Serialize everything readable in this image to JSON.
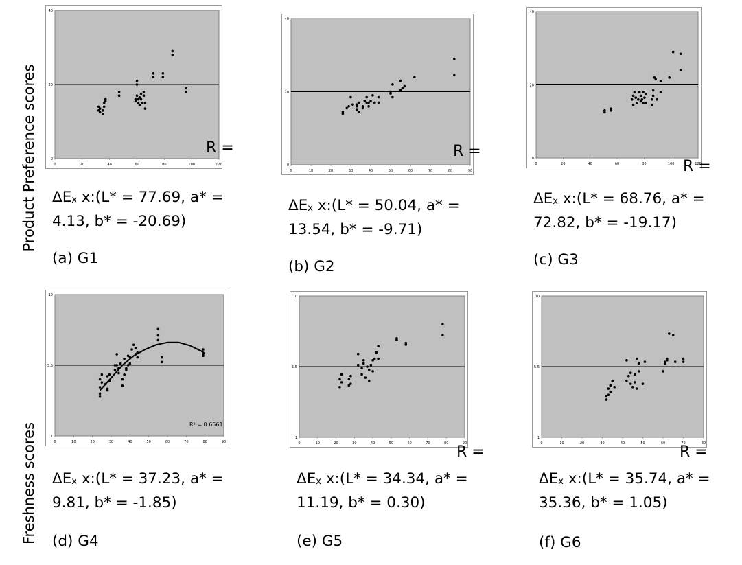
{
  "side_labels": {
    "top": "Product Preference scores",
    "bottom": "Freshness scores"
  },
  "colors": {
    "plot_bg": "#c0c0c0",
    "frame": "#808080",
    "ink": "#000000"
  },
  "chart_data": [
    {
      "type": "scatter",
      "id": "G1",
      "xlim": [
        0,
        120
      ],
      "ylim": [
        0,
        40
      ],
      "xticks": [
        "0",
        "20",
        "40",
        "60",
        "80",
        "100",
        "120"
      ],
      "yticks": [
        "0",
        "20",
        "40"
      ],
      "hline": 20,
      "grid": false,
      "legend": "none",
      "caption_formula": [
        "ΔE",
        "x",
        "  x:(L* = 77.69, a* =",
        "4.13, b* = -20.69)"
      ],
      "caption_label": "(a) G1",
      "r_label": "R =",
      "points": [
        [
          32,
          14
        ],
        [
          32,
          13
        ],
        [
          33,
          13.5
        ],
        [
          33,
          12.5
        ],
        [
          35,
          12
        ],
        [
          35,
          13
        ],
        [
          36,
          14
        ],
        [
          36,
          15
        ],
        [
          37,
          15.5
        ],
        [
          37,
          16
        ],
        [
          47,
          17
        ],
        [
          47,
          18
        ],
        [
          59,
          16
        ],
        [
          59,
          15.5
        ],
        [
          60,
          17
        ],
        [
          60,
          20
        ],
        [
          60,
          21
        ],
        [
          61,
          16
        ],
        [
          61,
          15
        ],
        [
          62,
          14.5
        ],
        [
          62,
          16.5
        ],
        [
          63,
          17.5
        ],
        [
          63,
          16
        ],
        [
          64,
          15
        ],
        [
          65,
          17
        ],
        [
          65,
          18
        ],
        [
          66,
          13.5
        ],
        [
          66,
          15
        ],
        [
          72,
          22
        ],
        [
          72,
          23
        ],
        [
          79,
          22
        ],
        [
          79,
          23
        ],
        [
          86,
          28
        ],
        [
          86,
          29
        ],
        [
          96,
          18
        ],
        [
          96,
          19
        ]
      ]
    },
    {
      "type": "scatter",
      "id": "G2",
      "xlim": [
        0,
        90
      ],
      "ylim": [
        0,
        40
      ],
      "xticks": [
        "0",
        "10",
        "20",
        "30",
        "40",
        "50",
        "60",
        "70",
        "80",
        "90"
      ],
      "yticks": [
        "0",
        "20",
        "40"
      ],
      "hline": 20,
      "grid": false,
      "legend": "none",
      "caption_formula": [
        "ΔE",
        "x",
        " x:(L* = 50.04, a* =",
        "13.54, b* = -9.71)"
      ],
      "caption_label": "(b) G2",
      "r_label": "R =",
      "points": [
        [
          26,
          14
        ],
        [
          26,
          14.5
        ],
        [
          28,
          15.5
        ],
        [
          29,
          16
        ],
        [
          30,
          18.5
        ],
        [
          31,
          16.5
        ],
        [
          33,
          15
        ],
        [
          33,
          16
        ],
        [
          33,
          16.5
        ],
        [
          34,
          17
        ],
        [
          34,
          14.5
        ],
        [
          36,
          16
        ],
        [
          36,
          15.5
        ],
        [
          37,
          17.5
        ],
        [
          38,
          17
        ],
        [
          38,
          18.5
        ],
        [
          39,
          16
        ],
        [
          39,
          17
        ],
        [
          40,
          17.5
        ],
        [
          41,
          19
        ],
        [
          42,
          17
        ],
        [
          44,
          18.5
        ],
        [
          44,
          17
        ],
        [
          50,
          19.5
        ],
        [
          50,
          20
        ],
        [
          51,
          18.5
        ],
        [
          51,
          22
        ],
        [
          55,
          20.5
        ],
        [
          55,
          23
        ],
        [
          56,
          21
        ],
        [
          57,
          21.5
        ],
        [
          62,
          24
        ],
        [
          82,
          29
        ],
        [
          82,
          24.5
        ]
      ]
    },
    {
      "type": "scatter",
      "id": "G3",
      "xlim": [
        0,
        130
      ],
      "ylim": [
        0,
        40
      ],
      "xticks": [
        "0",
        "20",
        "40",
        "60",
        "80",
        "100",
        "120"
      ],
      "yticks": [
        "0",
        "20",
        "40"
      ],
      "hline": 20,
      "grid": false,
      "legend": "none",
      "caption_formula": [
        "ΔE",
        "x",
        " x:(L* = 68.76, a* =",
        "72.82, b* = -19.17)"
      ],
      "caption_label": "(c) G3",
      "r_label": "R =",
      "points": [
        [
          55,
          13
        ],
        [
          55,
          12.5
        ],
        [
          60,
          13.5
        ],
        [
          60,
          13
        ],
        [
          77,
          16
        ],
        [
          78,
          17
        ],
        [
          78,
          14.5
        ],
        [
          79,
          18
        ],
        [
          80,
          16.5
        ],
        [
          81,
          15
        ],
        [
          82,
          16
        ],
        [
          83,
          18
        ],
        [
          84,
          17
        ],
        [
          84,
          15.5
        ],
        [
          85,
          16
        ],
        [
          86,
          18
        ],
        [
          86,
          15
        ],
        [
          87,
          16.5
        ],
        [
          88,
          17.5
        ],
        [
          88,
          15
        ],
        [
          93,
          14.5
        ],
        [
          93,
          16
        ],
        [
          94,
          17
        ],
        [
          94,
          18.5
        ],
        [
          95,
          22
        ],
        [
          96,
          21.5
        ],
        [
          97,
          16
        ],
        [
          100,
          18
        ],
        [
          100,
          21
        ],
        [
          107,
          22
        ],
        [
          110,
          29
        ],
        [
          116,
          28.5
        ],
        [
          116,
          24
        ]
      ]
    },
    {
      "type": "scatter",
      "id": "G4",
      "xlim": [
        0,
        90
      ],
      "ylim": [
        1,
        10
      ],
      "xticks": [
        "0",
        "10",
        "20",
        "30",
        "40",
        "50",
        "60",
        "70",
        "80",
        "90"
      ],
      "yticks": [
        "1",
        "5.5",
        "10"
      ],
      "hline": 5.5,
      "grid": false,
      "legend": "none",
      "trendline": {
        "type": "poly2",
        "x_range": [
          24,
          80
        ],
        "points": [
          [
            24,
            3.9
          ],
          [
            30,
            4.7
          ],
          [
            36,
            5.5
          ],
          [
            42,
            6.1
          ],
          [
            48,
            6.5
          ],
          [
            54,
            6.8
          ],
          [
            60,
            6.95
          ],
          [
            66,
            6.95
          ],
          [
            72,
            6.75
          ],
          [
            78,
            6.4
          ],
          [
            80,
            6.25
          ]
        ]
      },
      "r2_label": "R² = 0.6561",
      "caption_formula": [
        "ΔE",
        "x",
        "  x:(L* = 37.23, a* =",
        "9.81, b* = -1.85)"
      ],
      "caption_label": "(d) G4",
      "points": [
        [
          24,
          3.5
        ],
        [
          24,
          3.7
        ],
        [
          24,
          4.1
        ],
        [
          24,
          4.6
        ],
        [
          25,
          4.4
        ],
        [
          25,
          4.9
        ],
        [
          27,
          4.3
        ],
        [
          28,
          3.9
        ],
        [
          28,
          4.0
        ],
        [
          28,
          4.8
        ],
        [
          29,
          4.5
        ],
        [
          29,
          4.9
        ],
        [
          32,
          5.2
        ],
        [
          32,
          5.5
        ],
        [
          33,
          5.5
        ],
        [
          33,
          6.2
        ],
        [
          34,
          5.0
        ],
        [
          34,
          5.3
        ],
        [
          35,
          5.6
        ],
        [
          36,
          4.2
        ],
        [
          36,
          4.6
        ],
        [
          37,
          4.9
        ],
        [
          37,
          5.9
        ],
        [
          38,
          5.3
        ],
        [
          38,
          5.2
        ],
        [
          39,
          6.1
        ],
        [
          39,
          5.5
        ],
        [
          40,
          6.0
        ],
        [
          40,
          5.6
        ],
        [
          41,
          6.5
        ],
        [
          42,
          6.8
        ],
        [
          43,
          6.2
        ],
        [
          43,
          6.6
        ],
        [
          44,
          6.0
        ],
        [
          44,
          6.3
        ],
        [
          55,
          7.4
        ],
        [
          55,
          7.8
        ],
        [
          55,
          7.1
        ],
        [
          57,
          6.0
        ],
        [
          57,
          5.7
        ],
        [
          79,
          6.5
        ],
        [
          79,
          6.2
        ],
        [
          79,
          6.1
        ]
      ]
    },
    {
      "type": "scatter",
      "id": "G5",
      "xlim": [
        0,
        90
      ],
      "ylim": [
        1,
        10
      ],
      "xticks": [
        "0",
        "10",
        "20",
        "30",
        "40",
        "50",
        "60",
        "70",
        "80",
        "90"
      ],
      "yticks": [
        "1",
        "5.5",
        "10"
      ],
      "hline": 5.5,
      "grid": false,
      "legend": "none",
      "caption_formula": [
        "ΔE",
        "x",
        "  x:(L* = 34.34, a* =",
        "11.19, b* = 0.30)"
      ],
      "caption_label": "(e) G5",
      "r_label": "R =",
      "points": [
        [
          22,
          4.2
        ],
        [
          22,
          4.7
        ],
        [
          23,
          4.5
        ],
        [
          23,
          5.0
        ],
        [
          27,
          4.3
        ],
        [
          27,
          4.7
        ],
        [
          28,
          4.9
        ],
        [
          28,
          4.4
        ],
        [
          32,
          5.6
        ],
        [
          32,
          6.3
        ],
        [
          34,
          5.0
        ],
        [
          34,
          5.4
        ],
        [
          35,
          5.7
        ],
        [
          35,
          5.9
        ],
        [
          36,
          4.8
        ],
        [
          37,
          5.5
        ],
        [
          38,
          5.3
        ],
        [
          38,
          4.6
        ],
        [
          39,
          5.6
        ],
        [
          40,
          5.9
        ],
        [
          40,
          5.2
        ],
        [
          41,
          6.0
        ],
        [
          42,
          6.4
        ],
        [
          43,
          6.0
        ],
        [
          43,
          6.8
        ],
        [
          53,
          7.2
        ],
        [
          53,
          7.3
        ],
        [
          58,
          6.9
        ],
        [
          58,
          7.0
        ],
        [
          78,
          7.5
        ],
        [
          78,
          8.2
        ]
      ]
    },
    {
      "type": "scatter",
      "id": "G6",
      "xlim": [
        0,
        80
      ],
      "ylim": [
        1,
        10
      ],
      "xticks": [
        "0",
        "10",
        "20",
        "30",
        "40",
        "50",
        "60",
        "70",
        "80"
      ],
      "yticks": [
        "1",
        "5.5",
        "10"
      ],
      "hline": 5.5,
      "grid": false,
      "legend": "none",
      "caption_formula": [
        "ΔE",
        "x",
        "  x:(L* = 35.74, a* =",
        "35.36, b* = 1.05)"
      ],
      "caption_label": "(f) G6",
      "r_label": "R =",
      "points": [
        [
          32,
          3.4
        ],
        [
          32,
          3.6
        ],
        [
          33,
          3.7
        ],
        [
          33,
          4.1
        ],
        [
          34,
          4.3
        ],
        [
          34,
          3.9
        ],
        [
          35,
          4.6
        ],
        [
          36,
          4.2
        ],
        [
          42,
          5.9
        ],
        [
          42,
          4.6
        ],
        [
          43,
          4.9
        ],
        [
          44,
          4.4
        ],
        [
          44,
          5.1
        ],
        [
          45,
          4.2
        ],
        [
          46,
          4.5
        ],
        [
          46,
          5.0
        ],
        [
          47,
          4.1
        ],
        [
          47,
          6.0
        ],
        [
          48,
          5.7
        ],
        [
          48,
          5.2
        ],
        [
          50,
          4.4
        ],
        [
          51,
          5.8
        ],
        [
          60,
          5.2
        ],
        [
          61,
          5.7
        ],
        [
          61,
          5.8
        ],
        [
          62,
          5.9
        ],
        [
          62,
          6.0
        ],
        [
          63,
          7.6
        ],
        [
          65,
          7.5
        ],
        [
          66,
          5.8
        ],
        [
          70,
          5.8
        ],
        [
          70,
          6.0
        ]
      ]
    }
  ]
}
